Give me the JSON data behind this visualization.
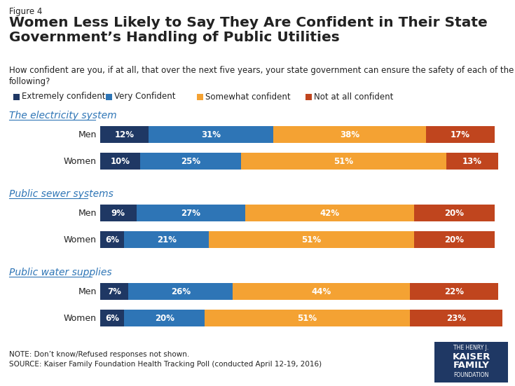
{
  "figure_label": "Figure 4",
  "title": "Women Less Likely to Say They Are Confident in Their State\nGovernment’s Handling of Public Utilities",
  "subtitle": "How confident are you, if at all, that over the next five years, your state government can ensure the safety of each of the\nfollowing?",
  "legend_labels": [
    "Extremely confident",
    "Very Confident",
    "Somewhat confident",
    "Not at all confident"
  ],
  "colors": [
    "#1f3864",
    "#2e75b6",
    "#f4a233",
    "#c0451e"
  ],
  "sections": [
    {
      "title": "The electricity system",
      "rows": [
        {
          "label": "Men",
          "values": [
            12,
            31,
            38,
            17
          ]
        },
        {
          "label": "Women",
          "values": [
            10,
            25,
            51,
            13
          ]
        }
      ]
    },
    {
      "title": "Public sewer systems",
      "rows": [
        {
          "label": "Men",
          "values": [
            9,
            27,
            42,
            20
          ]
        },
        {
          "label": "Women",
          "values": [
            6,
            21,
            51,
            20
          ]
        }
      ]
    },
    {
      "title": "Public water supplies",
      "rows": [
        {
          "label": "Men",
          "values": [
            7,
            26,
            44,
            22
          ]
        },
        {
          "label": "Women",
          "values": [
            6,
            20,
            51,
            23
          ]
        }
      ]
    }
  ],
  "note": "NOTE: Don’t know/Refused responses not shown.\nSOURCE: Kaiser Family Foundation Health Tracking Poll (conducted April 12-19, 2016)",
  "background_color": "#ffffff",
  "text_color_dark": "#222222",
  "text_color_bar": "#ffffff",
  "section_title_color": "#2e75b6",
  "figure_label_fontsize": 8.5,
  "title_fontsize": 14.5,
  "subtitle_fontsize": 8.5,
  "legend_fontsize": 8.5,
  "bar_label_fontsize": 8.5,
  "section_title_fontsize": 10,
  "row_label_fontsize": 9,
  "note_fontsize": 7.5
}
